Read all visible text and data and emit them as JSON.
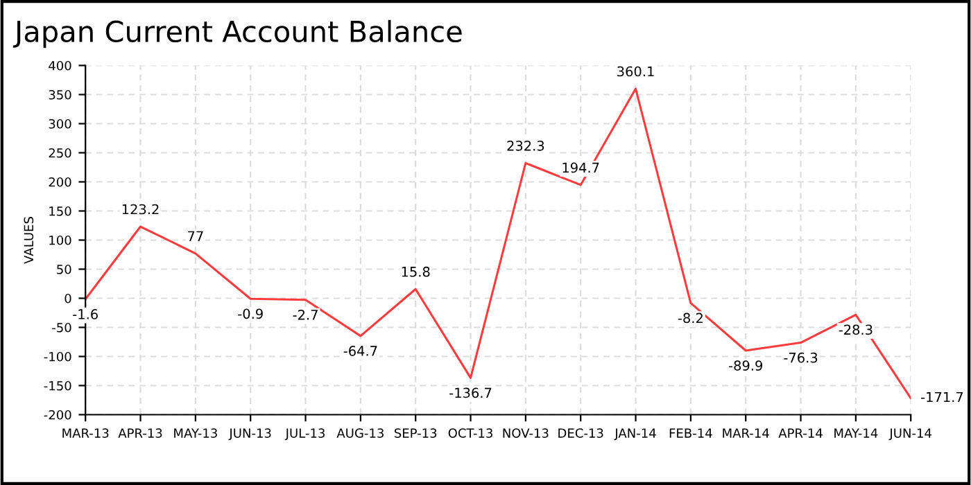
{
  "chart_data": {
    "type": "line",
    "title": "Japan Current Account Balance",
    "ylabel": "VALUES",
    "categories": [
      "MAR-13",
      "APR-13",
      "MAY-13",
      "JUN-13",
      "JUL-13",
      "AUG-13",
      "SEP-13",
      "OCT-13",
      "NOV-13",
      "DEC-13",
      "JAN-14",
      "FEB-14",
      "MAR-14",
      "APR-14",
      "MAY-14",
      "JUN-14"
    ],
    "series": [
      {
        "color": "#ff3b3b",
        "values": [
          -1.6,
          123.2,
          77,
          -0.9,
          -2.7,
          -64.7,
          15.8,
          -136.7,
          232.3,
          194.7,
          360.1,
          -8.2,
          -89.9,
          -76.3,
          -28.3,
          -171.7
        ]
      }
    ],
    "ylim": [
      -200,
      400
    ],
    "yticks": [
      -200,
      -150,
      -100,
      -50,
      0,
      50,
      100,
      150,
      200,
      250,
      300,
      350,
      400
    ],
    "grid": true,
    "data_labels": true,
    "marker": "none",
    "line_style": "solid",
    "legend": false
  }
}
